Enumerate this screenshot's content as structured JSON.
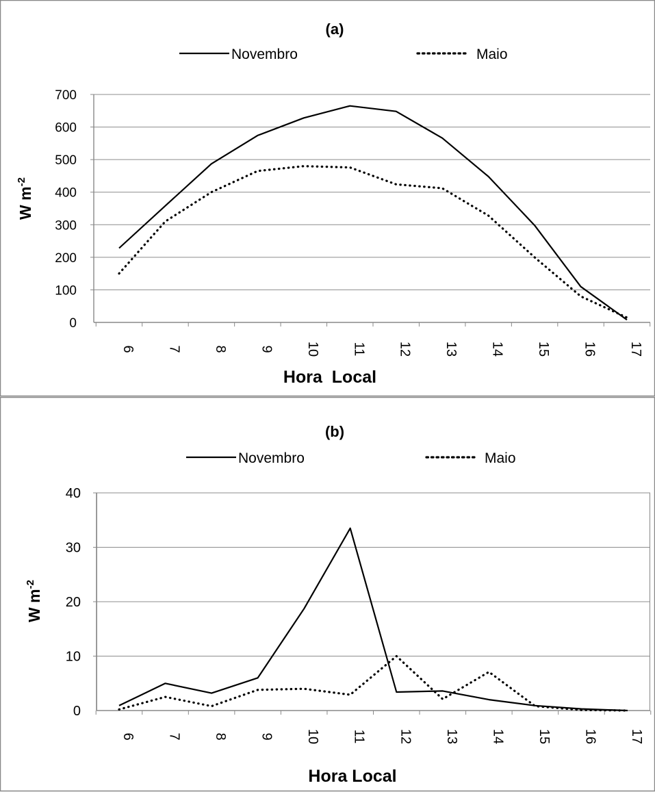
{
  "chart_data": [
    {
      "type": "line",
      "title": "(a)",
      "xlabel": "Hora  Local",
      "ylabel": "W m",
      "ylabel_sup": "-2",
      "categories": [
        "6",
        "7",
        "8",
        "9",
        "10",
        "11",
        "12",
        "13",
        "14",
        "15",
        "16",
        "17"
      ],
      "ylim": [
        0,
        700
      ],
      "yticks": [
        "0",
        "100",
        "200",
        "300",
        "400",
        "500",
        "600",
        "700"
      ],
      "grid": true,
      "legend_position": "top",
      "series": [
        {
          "name": "Novembro",
          "style": "solid",
          "values": [
            228,
            358,
            487,
            574,
            628,
            665,
            648,
            566,
            448,
            298,
            110,
            8
          ]
        },
        {
          "name": "Maio",
          "style": "dotted",
          "values": [
            150,
            310,
            400,
            465,
            480,
            476,
            424,
            412,
            328,
            200,
            80,
            15
          ]
        }
      ]
    },
    {
      "type": "line",
      "title": "(b)",
      "xlabel": "Hora Local",
      "ylabel": "W m",
      "ylabel_sup": "-2",
      "categories": [
        "6",
        "7",
        "8",
        "9",
        "10",
        "11",
        "12",
        "13",
        "14",
        "15",
        "16",
        "17"
      ],
      "ylim": [
        0,
        40
      ],
      "yticks": [
        "0",
        "10",
        "20",
        "30",
        "40"
      ],
      "grid": true,
      "legend_position": "top",
      "series": [
        {
          "name": "Novembro",
          "style": "solid",
          "values": [
            0.9,
            5.0,
            3.2,
            6.0,
            18.7,
            33.5,
            3.4,
            3.6,
            2.0,
            0.9,
            0.3,
            0.0
          ]
        },
        {
          "name": "Maio",
          "style": "dotted",
          "values": [
            0.2,
            2.5,
            0.8,
            3.8,
            4.0,
            2.9,
            10.0,
            2.1,
            7.1,
            0.8,
            0.1,
            0.0
          ]
        }
      ]
    }
  ]
}
